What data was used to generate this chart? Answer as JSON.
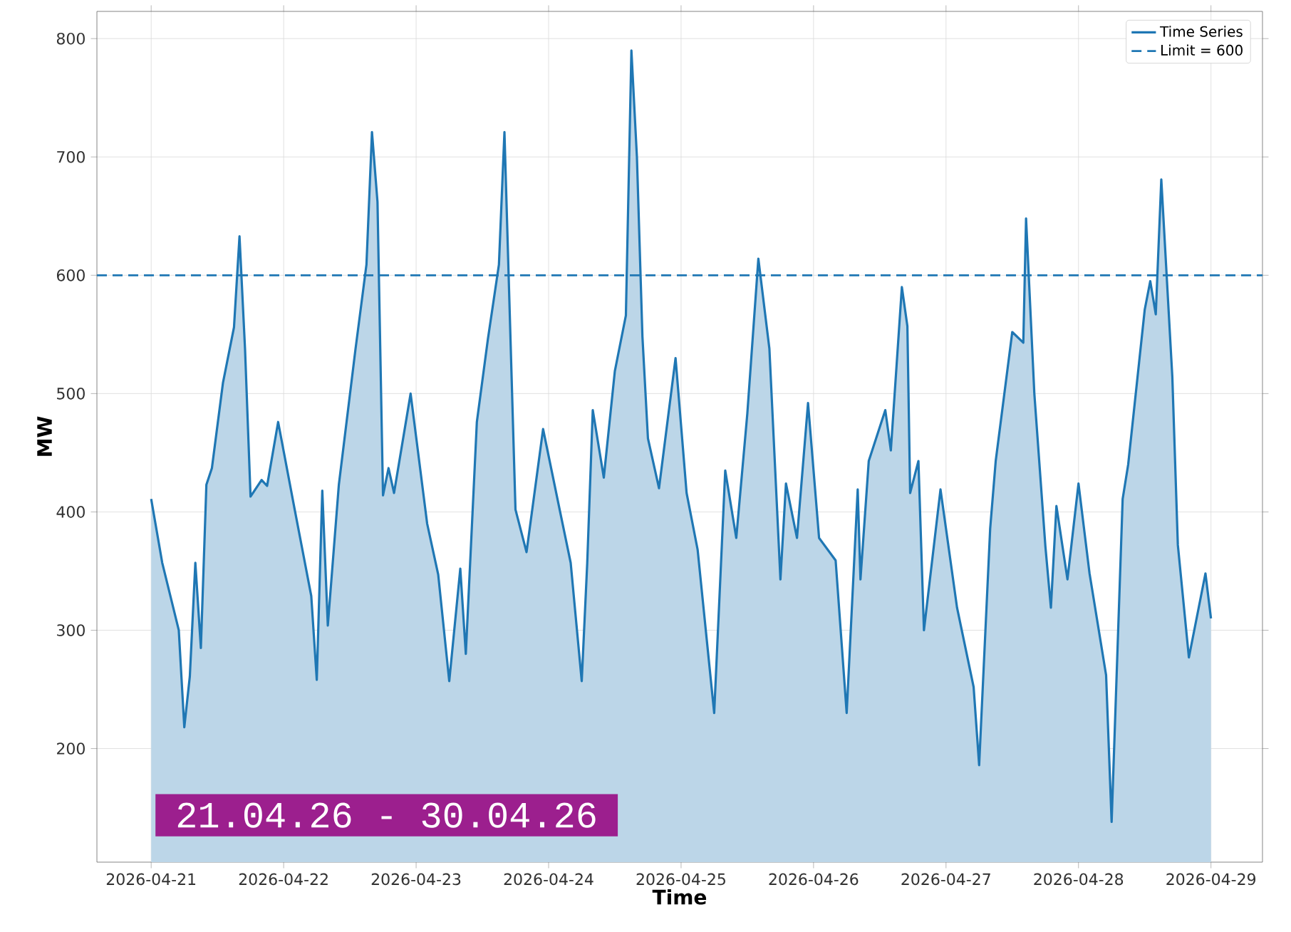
{
  "chart_data": {
    "type": "area",
    "xlabel": "Time",
    "ylabel": "MW",
    "x": [
      "2026-04-21T00:00",
      "2026-04-21T02:00",
      "2026-04-21T03:00",
      "2026-04-21T05:00",
      "2026-04-21T06:00",
      "2026-04-21T07:00",
      "2026-04-21T08:00",
      "2026-04-21T09:00",
      "2026-04-21T10:00",
      "2026-04-21T11:00",
      "2026-04-21T13:00",
      "2026-04-21T15:00",
      "2026-04-21T16:00",
      "2026-04-21T17:00",
      "2026-04-21T18:00",
      "2026-04-21T20:00",
      "2026-04-21T21:00",
      "2026-04-21T23:00",
      "2026-04-22T02:00",
      "2026-04-22T05:00",
      "2026-04-22T06:00",
      "2026-04-22T07:00",
      "2026-04-22T08:00",
      "2026-04-22T10:00",
      "2026-04-22T13:00",
      "2026-04-22T15:00",
      "2026-04-22T16:00",
      "2026-04-22T17:00",
      "2026-04-22T18:00",
      "2026-04-22T19:00",
      "2026-04-22T20:00",
      "2026-04-22T23:00",
      "2026-04-23T02:00",
      "2026-04-23T04:00",
      "2026-04-23T06:00",
      "2026-04-23T08:00",
      "2026-04-23T09:00",
      "2026-04-23T11:00",
      "2026-04-23T13:00",
      "2026-04-23T15:00",
      "2026-04-23T16:00",
      "2026-04-23T18:00",
      "2026-04-23T20:00",
      "2026-04-23T23:00",
      "2026-04-24T02:00",
      "2026-04-24T04:00",
      "2026-04-24T06:00",
      "2026-04-24T07:00",
      "2026-04-24T08:00",
      "2026-04-24T10:00",
      "2026-04-24T12:00",
      "2026-04-24T14:00",
      "2026-04-24T15:00",
      "2026-04-24T16:00",
      "2026-04-24T17:00",
      "2026-04-24T18:00",
      "2026-04-24T20:00",
      "2026-04-24T23:00",
      "2026-04-25T00:00",
      "2026-04-25T01:00",
      "2026-04-25T03:00",
      "2026-04-25T06:00",
      "2026-04-25T08:00",
      "2026-04-25T10:00",
      "2026-04-25T12:00",
      "2026-04-25T14:00",
      "2026-04-25T16:00",
      "2026-04-25T18:00",
      "2026-04-25T19:00",
      "2026-04-25T21:00",
      "2026-04-25T23:00",
      "2026-04-26T01:00",
      "2026-04-26T04:00",
      "2026-04-26T06:00",
      "2026-04-26T08:00",
      "2026-04-26T08:30",
      "2026-04-26T10:00",
      "2026-04-26T13:00",
      "2026-04-26T14:00",
      "2026-04-26T16:00",
      "2026-04-26T17:00",
      "2026-04-26T17:30",
      "2026-04-26T19:00",
      "2026-04-26T20:00",
      "2026-04-26T23:00",
      "2026-04-27T02:00",
      "2026-04-27T05:00",
      "2026-04-27T06:00",
      "2026-04-27T08:00",
      "2026-04-27T09:00",
      "2026-04-27T12:00",
      "2026-04-27T14:00",
      "2026-04-27T14:30",
      "2026-04-27T16:00",
      "2026-04-27T18:00",
      "2026-04-27T19:00",
      "2026-04-27T20:00",
      "2026-04-27T22:00",
      "2026-04-28T00:00",
      "2026-04-28T02:00",
      "2026-04-28T05:00",
      "2026-04-28T06:00",
      "2026-04-28T08:00",
      "2026-04-28T09:00",
      "2026-04-28T12:00",
      "2026-04-28T13:00",
      "2026-04-28T14:00",
      "2026-04-28T15:00",
      "2026-04-28T17:00",
      "2026-04-28T18:00",
      "2026-04-28T20:00",
      "2026-04-28T23:00",
      "2026-04-29T00:00"
    ],
    "series": [
      {
        "name": "Time Series",
        "color": "#1f77b4",
        "values": [
          411,
          357,
          338,
          300,
          218,
          261,
          357,
          285,
          423,
          437,
          509,
          556,
          633,
          538,
          413,
          427,
          422,
          476,
          402,
          329,
          258,
          418,
          304,
          423,
          537,
          609,
          721,
          662,
          414,
          437,
          416,
          500,
          390,
          347,
          257,
          352,
          280,
          476,
          546,
          609,
          721,
          402,
          366,
          470,
          402,
          357,
          257,
          357,
          486,
          429,
          519,
          566,
          790,
          700,
          548,
          462,
          420,
          530,
          473,
          416,
          368,
          230,
          435,
          378,
          483,
          614,
          538,
          343,
          424,
          378,
          492,
          378,
          359,
          230,
          419,
          343,
          443,
          486,
          452,
          590,
          557,
          416,
          443,
          300,
          419,
          319,
          252,
          186,
          386,
          443,
          552,
          543,
          648,
          500,
          371,
          319,
          405,
          343,
          424,
          348,
          262,
          138,
          411,
          440,
          571,
          595,
          567,
          681,
          514,
          372,
          277,
          348,
          310
        ]
      }
    ],
    "xlim": [
      "2026-04-20T14:10",
      "2026-04-29T09:20"
    ],
    "xticks": [
      "2026-04-21",
      "2026-04-22",
      "2026-04-23",
      "2026-04-24",
      "2026-04-25",
      "2026-04-26",
      "2026-04-27",
      "2026-04-28",
      "2026-04-29"
    ],
    "ylim": [
      104,
      823
    ],
    "yticks": [
      200,
      300,
      400,
      500,
      600,
      700,
      800
    ],
    "ref_lines": [
      {
        "axis": "y",
        "value": 600,
        "label": "Limit = 600",
        "color": "#1f77b4",
        "line_style": "dashed"
      }
    ],
    "annotations": [
      "21.04.26 - 30.04.26"
    ],
    "grid": true,
    "legend": "top right"
  }
}
